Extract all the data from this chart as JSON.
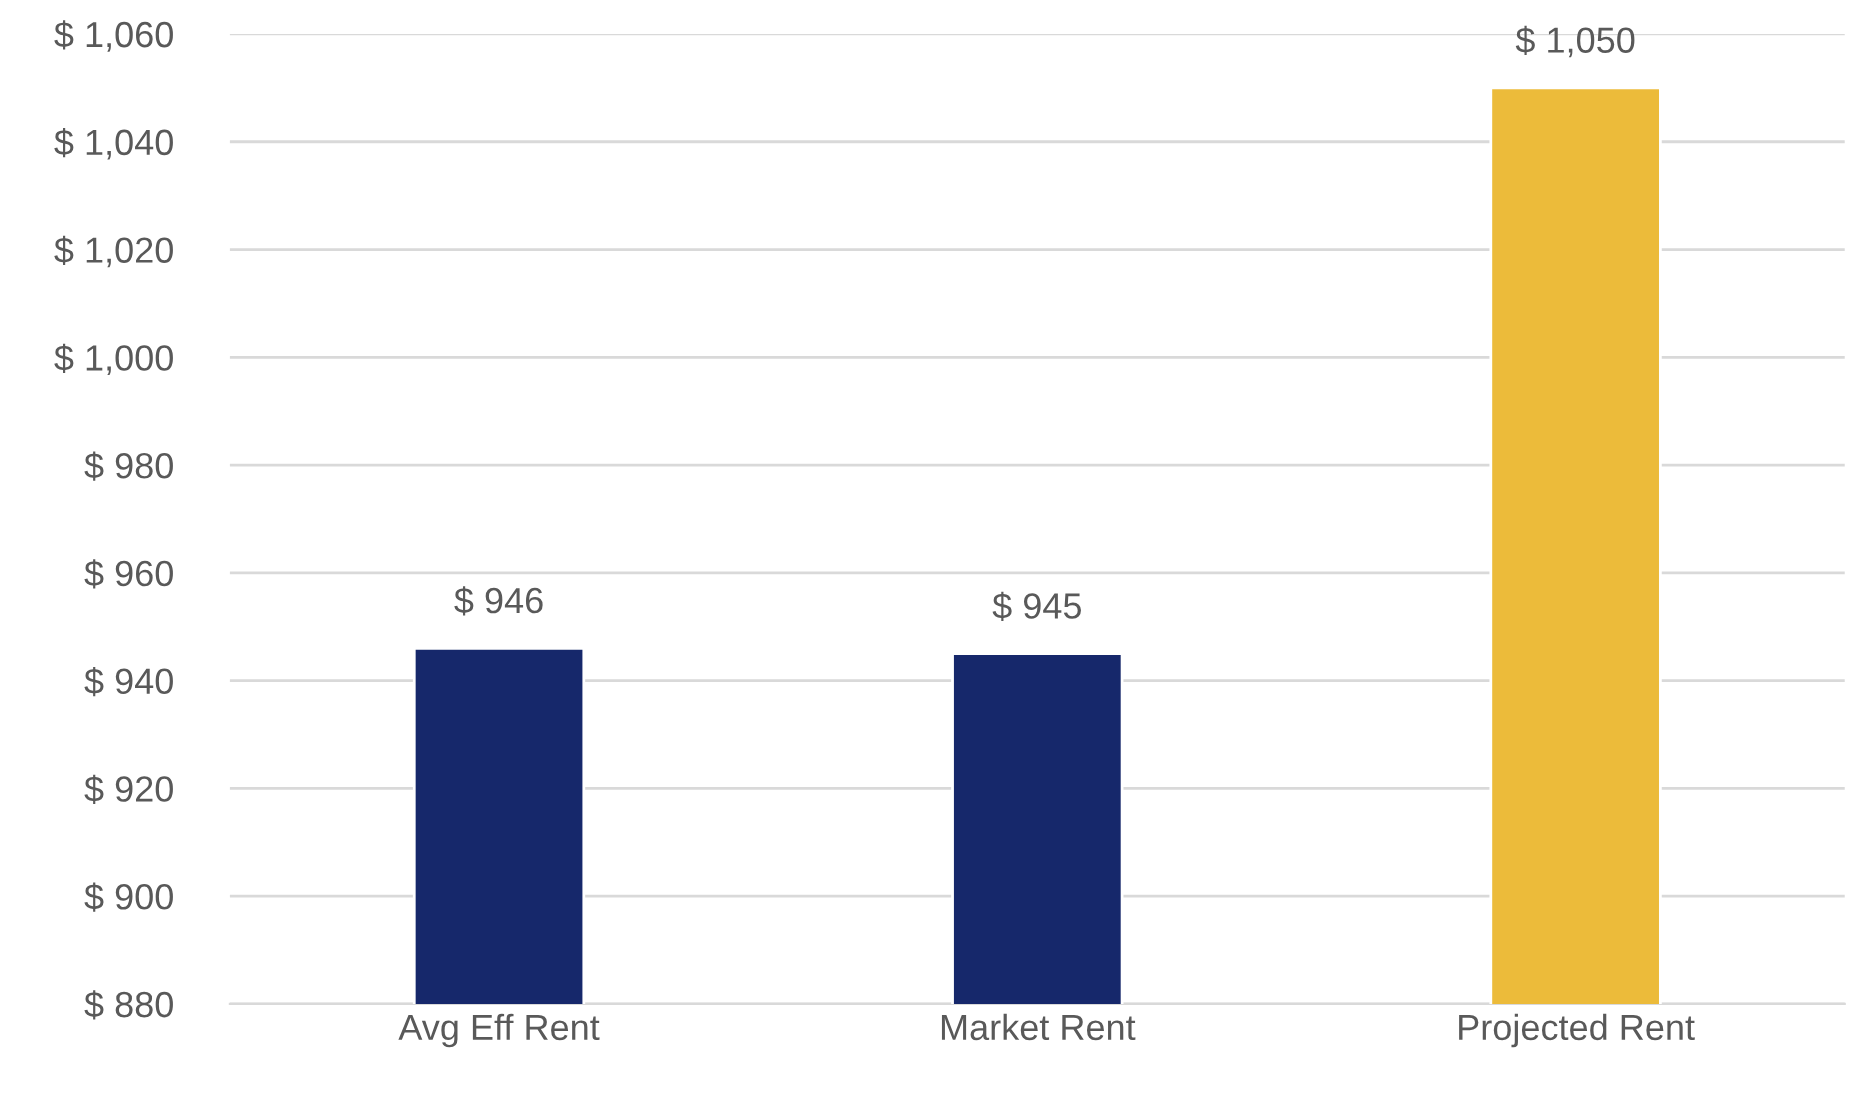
{
  "chart_data": {
    "type": "bar",
    "categories": [
      "Avg Eff Rent",
      "Market Rent",
      "Projected Rent"
    ],
    "values": [
      946,
      945,
      1050
    ],
    "colors": [
      "#16286b",
      "#16286b",
      "#ecbb3a"
    ],
    "value_labels": [
      "$ 946",
      "$ 945",
      "$ 1,050"
    ],
    "ylim": [
      880,
      1060
    ],
    "yticks": [
      {
        "value": 880,
        "label": "$ 880"
      },
      {
        "value": 900,
        "label": "$ 900"
      },
      {
        "value": 920,
        "label": "$ 920"
      },
      {
        "value": 940,
        "label": "$ 940"
      },
      {
        "value": 960,
        "label": "$ 960"
      },
      {
        "value": 980,
        "label": "$ 980"
      },
      {
        "value": 1000,
        "label": "$ 1,000"
      },
      {
        "value": 1020,
        "label": "$ 1,020"
      },
      {
        "value": 1040,
        "label": "$ 1,040"
      },
      {
        "value": 1060,
        "label": "$ 1,060"
      }
    ],
    "grid": "y",
    "legend": false
  }
}
